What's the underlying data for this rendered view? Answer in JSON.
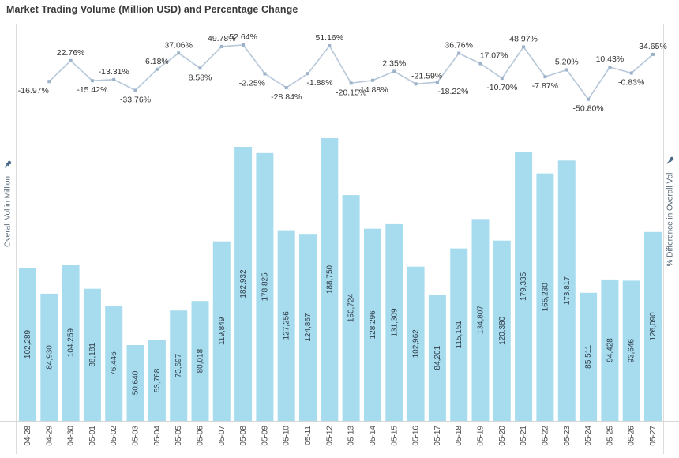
{
  "title": "Market Trading Volume (Million USD) and Percentage Change",
  "axes": {
    "left": {
      "label": "Overall Vol in Million",
      "pinned": true,
      "pin_icon": "pushpin-icon"
    },
    "right": {
      "label": "% Difference in Overall Vol",
      "pinned": true,
      "pin_icon": "pushpin-icon"
    },
    "x_categories": [
      "04-28",
      "04-29",
      "04-30",
      "05-01",
      "05-02",
      "05-03",
      "05-04",
      "05-05",
      "05-06",
      "05-07",
      "05-08",
      "05-09",
      "05-10",
      "05-11",
      "05-12",
      "05-13",
      "05-14",
      "05-15",
      "05-16",
      "05-17",
      "05-18",
      "05-19",
      "05-20",
      "05-21",
      "05-22",
      "05-23",
      "05-24",
      "05-25",
      "05-26",
      "05-27"
    ]
  },
  "colors": {
    "bar": "#a7dcef",
    "line": "#b6c7d9",
    "marker": "#9cb2c8",
    "label_text": "#333333",
    "bar_label_text": "#2e3c48",
    "date_text": "#4a4a4a",
    "axis_title_text": "#546575",
    "pin": "#4a6a8a",
    "divider": "#e3e3e3",
    "axis_line": "#dcdcdc",
    "baseline": "#d6d6d6"
  },
  "chart_data": [
    {
      "type": "line",
      "name": "% Difference in Overall Vol",
      "x": [
        "04-29",
        "04-30",
        "05-01",
        "05-02",
        "05-03",
        "05-04",
        "05-05",
        "05-06",
        "05-07",
        "05-08",
        "05-09",
        "05-10",
        "05-11",
        "05-12",
        "05-13",
        "05-14",
        "05-15",
        "05-16",
        "05-17",
        "05-18",
        "05-19",
        "05-20",
        "05-21",
        "05-22",
        "05-23",
        "05-24",
        "05-25",
        "05-26",
        "05-27"
      ],
      "values": [
        -16.97,
        22.76,
        -15.42,
        -13.31,
        -33.76,
        6.18,
        37.06,
        8.58,
        49.78,
        52.64,
        -2.25,
        -28.84,
        -1.88,
        51.16,
        -20.15,
        -14.88,
        2.35,
        -21.59,
        -18.22,
        36.76,
        17.07,
        -10.7,
        48.97,
        -7.87,
        5.2,
        -50.8,
        10.43,
        -0.83,
        34.65
      ],
      "labels": [
        "-16.97%",
        "22.76%",
        "-15.42%",
        "-13.31%",
        "-33.76%",
        "6.18%",
        "37.06%",
        "8.58%",
        "49.78%",
        "52.64%",
        "-2.25%",
        "-28.84%",
        "-1.88%",
        "51.16%",
        "-20.15%",
        "-14.88%",
        "2.35%",
        "-21.59%",
        "-18.22%",
        "36.76%",
        "17.07%",
        "-10.70%",
        "48.97%",
        "-7.87%",
        "5.20%",
        "-50.80%",
        "10.43%",
        "-0.83%",
        "34.65%"
      ],
      "label_positions": [
        "below",
        "above",
        "below",
        "above",
        "below",
        "above",
        "above",
        "below",
        "above",
        "above",
        "below",
        "below",
        "below",
        "above",
        "below",
        "below",
        "above",
        "above",
        "below",
        "above",
        "above",
        "below",
        "above",
        "below",
        "above",
        "below",
        "above",
        "below",
        "above"
      ],
      "label_dx": [
        -20,
        0,
        0,
        0,
        0,
        0,
        0,
        0,
        0,
        0,
        -16,
        0,
        15,
        0,
        0,
        0,
        0,
        14,
        20,
        0,
        17,
        0,
        0,
        0,
        0,
        0,
        0,
        0,
        0
      ],
      "ylim": [
        -50.8,
        52.64
      ],
      "grid": false,
      "legend": "none"
    },
    {
      "type": "bar",
      "name": "Overall Vol in Million",
      "categories": [
        "04-28",
        "04-29",
        "04-30",
        "05-01",
        "05-02",
        "05-03",
        "05-04",
        "05-05",
        "05-06",
        "05-07",
        "05-08",
        "05-09",
        "05-10",
        "05-11",
        "05-12",
        "05-13",
        "05-14",
        "05-15",
        "05-16",
        "05-17",
        "05-18",
        "05-19",
        "05-20",
        "05-21",
        "05-22",
        "05-23",
        "05-24",
        "05-25",
        "05-26",
        "05-27"
      ],
      "values": [
        102289,
        84930,
        104259,
        88181,
        76446,
        50640,
        53768,
        73697,
        80018,
        119849,
        182932,
        178825,
        127256,
        124867,
        188750,
        150724,
        128296,
        131309,
        102962,
        84201,
        115151,
        134807,
        120380,
        179335,
        165230,
        173817,
        85511,
        94428,
        93646,
        126090
      ],
      "value_labels": [
        "102,289",
        "84,930",
        "104,259",
        "88,181",
        "76,446",
        "50,640",
        "53,768",
        "73,697",
        "80,018",
        "119,849",
        "182,932",
        "178,825",
        "127,256",
        "124,867",
        "188,750",
        "150,724",
        "128,296",
        "131,309",
        "102,962",
        "84,201",
        "115,151",
        "134,807",
        "120,380",
        "179,335",
        "165,230",
        "173,817",
        "85,511",
        "94,428",
        "93,646",
        "126,090"
      ],
      "ylim": [
        0,
        200000
      ],
      "grid": false,
      "legend": "none"
    }
  ]
}
